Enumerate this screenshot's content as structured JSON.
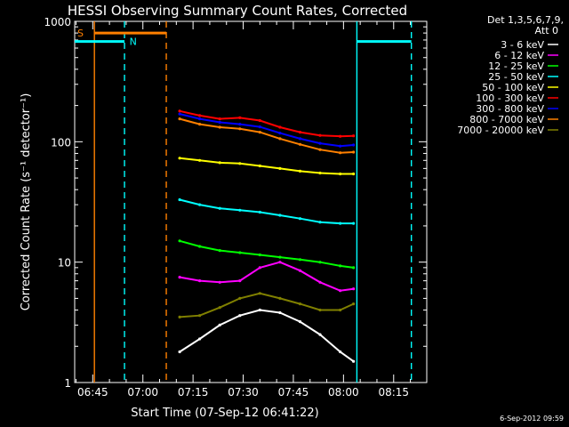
{
  "chart_data": {
    "type": "line",
    "title": "HESSI Observing Summary Count Rates, Corrected",
    "xlabel": "Start Time (07-Sep-12 06:41:22)",
    "ylabel": "Corrected Count Rate (s⁻¹ detector⁻¹)",
    "yscale": "log",
    "ylim": [
      1,
      1000
    ],
    "xlim_minutes": [
      -5.4,
      99.9
    ],
    "x_ticks": [
      {
        "label": "06:45",
        "min": 0
      },
      {
        "label": "07:00",
        "min": 15
      },
      {
        "label": "07:15",
        "min": 30
      },
      {
        "label": "07:30",
        "min": 45
      },
      {
        "label": "07:45",
        "min": 60
      },
      {
        "label": "08:00",
        "min": 75
      },
      {
        "label": "08:15",
        "min": 90
      }
    ],
    "y_ticks": [
      {
        "label": "1",
        "value": 1
      },
      {
        "label": "10",
        "value": 10
      },
      {
        "label": "100",
        "value": 100
      },
      {
        "label": "1000",
        "value": 1000
      }
    ],
    "legend": {
      "header": [
        "Det 1,3,5,6,7,9,",
        "Att 0"
      ],
      "position": "top-right"
    },
    "series": [
      {
        "name": "3 - 6 keV",
        "color": "#ffffff",
        "x_min": [
          26,
          32,
          38,
          44,
          50,
          56,
          62,
          68,
          74,
          78
        ],
        "values": [
          1.8,
          2.3,
          3.0,
          3.6,
          4.0,
          3.8,
          3.2,
          2.5,
          1.8,
          1.5
        ]
      },
      {
        "name": "6 - 12 keV",
        "color": "#ff00ff",
        "x_min": [
          26,
          32,
          38,
          44,
          50,
          56,
          62,
          68,
          74,
          78
        ],
        "values": [
          7.5,
          7.0,
          6.8,
          7.0,
          9.0,
          10.0,
          8.5,
          6.8,
          5.8,
          6.0
        ]
      },
      {
        "name": "12 - 25 keV",
        "color": "#00ff00",
        "x_min": [
          26,
          32,
          38,
          44,
          50,
          56,
          62,
          68,
          74,
          78
        ],
        "values": [
          15,
          13.5,
          12.5,
          12,
          11.5,
          11,
          10.5,
          10,
          9.3,
          9.0
        ]
      },
      {
        "name": "25 - 50 keV",
        "color": "#00ffff",
        "x_min": [
          26,
          32,
          38,
          44,
          50,
          56,
          62,
          68,
          74,
          78
        ],
        "values": [
          33,
          30,
          28,
          27,
          26,
          24.5,
          23,
          21.5,
          21,
          21
        ]
      },
      {
        "name": "50 - 100 keV",
        "color": "#ffff00",
        "x_min": [
          26,
          32,
          38,
          44,
          50,
          56,
          62,
          68,
          74,
          78
        ],
        "values": [
          73,
          70,
          67,
          66,
          63,
          60,
          57,
          55,
          54,
          54
        ]
      },
      {
        "name": "100 - 300 keV",
        "color": "#ff0000",
        "x_min": [
          26,
          32,
          38,
          44,
          50,
          56,
          62,
          68,
          74,
          78
        ],
        "values": [
          180,
          165,
          155,
          158,
          150,
          132,
          120,
          113,
          111,
          112
        ]
      },
      {
        "name": "300 - 800 keV",
        "color": "#0000ff",
        "x_min": [
          26,
          32,
          38,
          44,
          50,
          56,
          62,
          68,
          74,
          78
        ],
        "values": [
          170,
          155,
          145,
          140,
          133,
          118,
          106,
          97,
          92,
          94
        ]
      },
      {
        "name": "800 - 7000 keV",
        "color": "#ff8000",
        "x_min": [
          26,
          32,
          38,
          44,
          50,
          56,
          62,
          68,
          74,
          78
        ],
        "values": [
          155,
          140,
          132,
          128,
          120,
          106,
          95,
          86,
          81,
          82
        ]
      },
      {
        "name": "7000 - 20000 keV",
        "color": "#808000",
        "x_min": [
          26,
          32,
          38,
          44,
          50,
          56,
          62,
          68,
          74,
          78
        ],
        "values": [
          3.5,
          3.6,
          4.2,
          5.0,
          5.5,
          5.0,
          4.5,
          4.0,
          4.0,
          4.5
        ]
      }
    ],
    "annotations": [
      {
        "label": "S",
        "color": "#ff8000"
      },
      {
        "label": "N",
        "color": "#00ffff"
      }
    ],
    "attenuator_segments": [
      {
        "color": "#ff8000",
        "value": 800,
        "x_from": 0.5,
        "x_to": 22.0
      },
      {
        "color": "#00ffff",
        "value": 680,
        "x_from": -5.4,
        "x_to": 9.5
      },
      {
        "color": "#00ffff",
        "value": 680,
        "x_from": 79.0,
        "x_to": 95.3
      }
    ],
    "vertical_markers": [
      {
        "color": "#ff8000",
        "x_min": 0.5,
        "style": "solid"
      },
      {
        "color": "#ff8000",
        "x_min": 22.0,
        "style": "dashed"
      },
      {
        "color": "#00ffff",
        "x_min": 9.5,
        "style": "dashed"
      },
      {
        "color": "#00ffff",
        "x_min": 79.0,
        "style": "solid"
      },
      {
        "color": "#00ffff",
        "x_min": 95.3,
        "style": "dashed"
      }
    ],
    "timestamp": "6-Sep-2012 09:59"
  }
}
